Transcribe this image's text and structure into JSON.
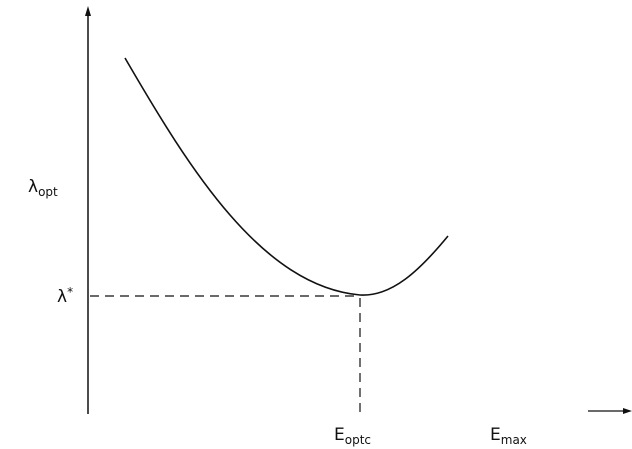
{
  "labels": {
    "y_axis": {
      "text": "λ",
      "sub": "opt"
    },
    "y_marker": {
      "text": "λ",
      "sup": "*"
    },
    "x_marker": {
      "text": "E",
      "sub": "optc"
    },
    "x_axis": {
      "text": "E",
      "sub": "max"
    }
  }
}
